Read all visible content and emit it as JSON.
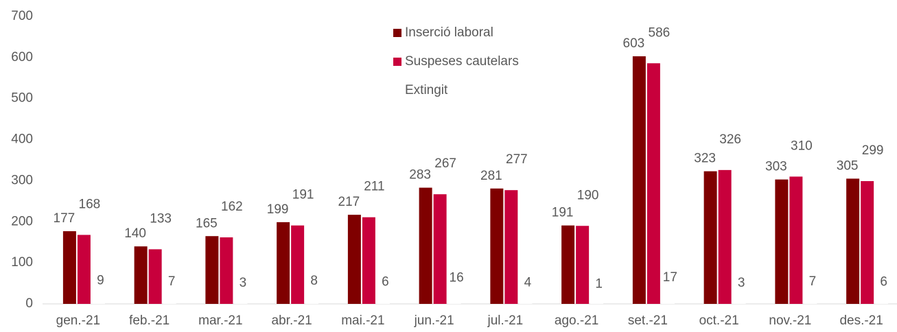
{
  "chart_data": {
    "type": "bar",
    "categories": [
      "gen.-21",
      "feb.-21",
      "mar.-21",
      "abr.-21",
      "mai.-21",
      "jun.-21",
      "jul.-21",
      "ago.-21",
      "set.-21",
      "oct.-21",
      "nov.-21",
      "des.-21"
    ],
    "series": [
      {
        "name": "Inserció laboral",
        "color": "#7f0000",
        "values": [
          177,
          140,
          165,
          199,
          217,
          283,
          281,
          191,
          603,
          323,
          303,
          305
        ]
      },
      {
        "name": "Suspeses cautelars",
        "color": "#c8003c",
        "values": [
          168,
          133,
          162,
          191,
          211,
          267,
          277,
          190,
          586,
          326,
          310,
          299
        ]
      },
      {
        "name": "Extingit",
        "color": "#ffffff",
        "values": [
          9,
          7,
          3,
          8,
          6,
          16,
          4,
          1,
          17,
          3,
          7,
          6
        ]
      }
    ],
    "ylim": [
      0,
      700
    ],
    "yticks": [
      0,
      100,
      200,
      300,
      400,
      500,
      600,
      700
    ],
    "grid": false
  }
}
